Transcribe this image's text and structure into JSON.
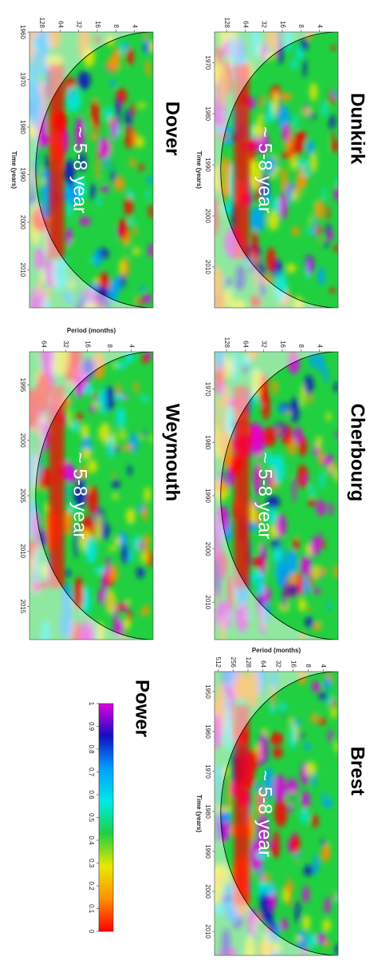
{
  "chart_data": [
    {
      "type": "wavelet",
      "title": "Dunkirk",
      "annotation": "~ 5-8 year",
      "x_label": "Time (years)",
      "xlim": [
        1964,
        2018
      ],
      "xticks": [
        1970,
        1980,
        1990,
        2000,
        2010
      ],
      "ylim": [
        2,
        200
      ],
      "yticks": [
        4,
        8,
        16,
        32,
        64,
        128
      ],
      "log_y": true
    },
    {
      "type": "wavelet",
      "title": "Cherbourg",
      "annotation": "~ 5-8 year",
      "xlim": [
        1963,
        2017
      ],
      "xticks": [
        1970,
        1980,
        1990,
        2000,
        2010
      ],
      "ylim": [
        2,
        200
      ],
      "yticks": [
        4,
        8,
        16,
        32,
        64,
        128
      ],
      "log_y": true
    },
    {
      "type": "wavelet",
      "title": "Brest",
      "annotation": "~ 5-8 year",
      "x_label": "Time (years)",
      "y_label": "Period (months)",
      "xlim": [
        1945,
        2016
      ],
      "xticks": [
        1950,
        1960,
        1970,
        1980,
        1990,
        2000,
        2010
      ],
      "ylim": [
        2,
        600
      ],
      "yticks": [
        4,
        8,
        16,
        32,
        64,
        128,
        256,
        512
      ],
      "log_y": true
    },
    {
      "type": "wavelet",
      "title": "Dover",
      "annotation": "~ 5-8 year",
      "x_label": "Time (years)",
      "xlim": [
        1960,
        2018
      ],
      "xticks": [
        1960,
        1970,
        1980,
        1990,
        2000,
        2010
      ],
      "ylim": [
        2,
        200
      ],
      "yticks": [
        4,
        8,
        16,
        32,
        64,
        128
      ],
      "log_y": true
    },
    {
      "type": "wavelet",
      "title": "Weymouth",
      "annotation": "~ 5-8 year",
      "y_label": "Period (months)",
      "xlim": [
        1992,
        2018
      ],
      "xticks": [
        1995,
        2000,
        2005,
        2010,
        2015
      ],
      "ylim": [
        2,
        100
      ],
      "yticks": [
        4,
        8,
        16,
        32,
        64
      ],
      "log_y": true
    },
    {
      "type": "colorbar",
      "title": "Power",
      "lim": [
        1,
        0
      ],
      "ticks": [
        1,
        0.9,
        0.8,
        0.7,
        0.6,
        0.5,
        0.4,
        0.3,
        0.2,
        0.1,
        0
      ],
      "colors": [
        "#e000e0",
        "#1010c0",
        "#00a0ff",
        "#00e8e8",
        "#20d040",
        "#e8e800",
        "#ff9000",
        "#ff0000"
      ]
    }
  ]
}
